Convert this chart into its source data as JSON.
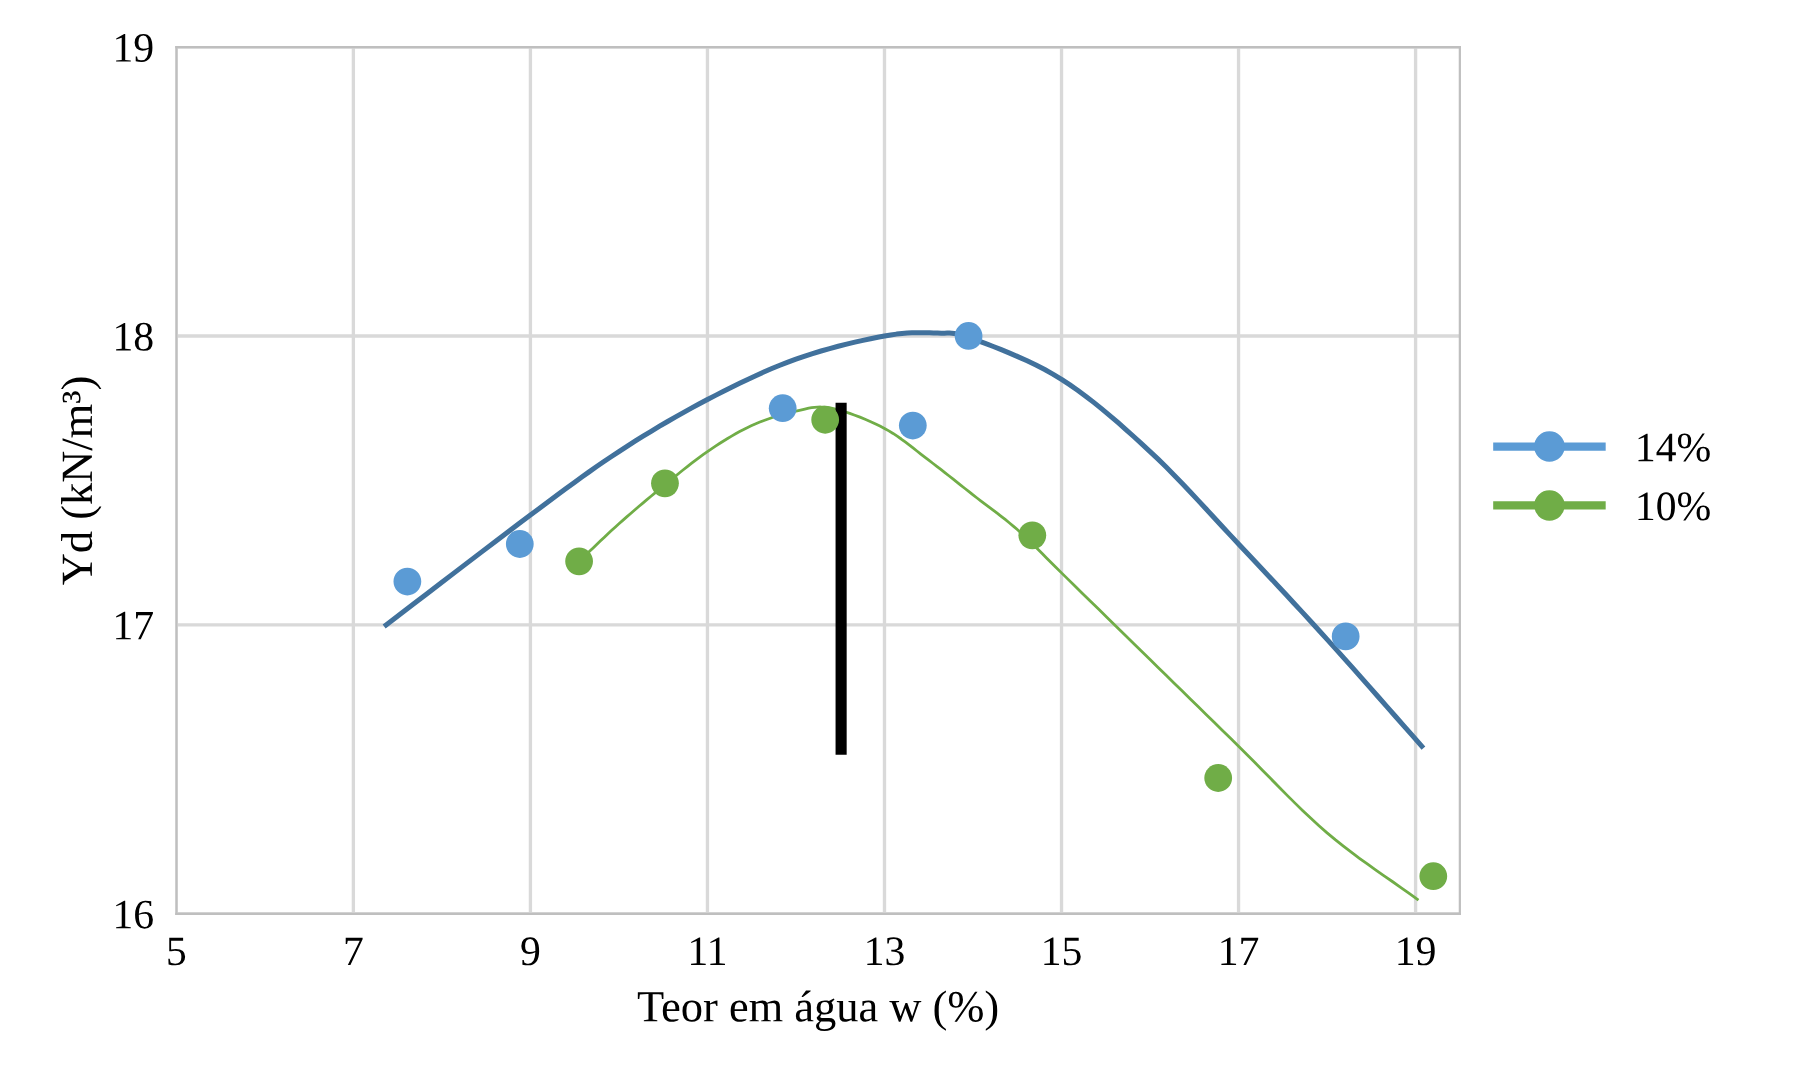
{
  "chart_data": {
    "type": "scatter",
    "xlabel": "Teor em água w (%)",
    "ylabel": "Yd (kN/m³)",
    "xlim": [
      5,
      19.5
    ],
    "xticks": [
      5,
      7,
      9,
      11,
      13,
      15,
      17,
      19
    ],
    "ylim": [
      16,
      19
    ],
    "yticks": [
      16,
      17,
      18,
      19
    ],
    "grid": true,
    "legend": "right",
    "series": [
      {
        "name": "14%",
        "marker": "circle",
        "color": "#5b9bd5",
        "x": [
          7.61,
          8.88,
          11.85,
          13.32,
          13.95,
          18.21
        ],
        "values": [
          17.15,
          17.28,
          17.75,
          17.69,
          18.0,
          16.96
        ]
      },
      {
        "name": "10%",
        "marker": "circle",
        "color": "#70ad47",
        "x": [
          9.55,
          10.52,
          12.33,
          14.67,
          16.77,
          19.2
        ],
        "values": [
          17.22,
          17.49,
          17.71,
          17.31,
          16.47,
          16.13
        ]
      },
      {
        "type": "line",
        "marker": "none",
        "color": "#41719c",
        "x": [
          7.37,
          9,
          10,
          11,
          12,
          13,
          13.6,
          14,
          15,
          16,
          17,
          18,
          19.07
        ],
        "values": [
          17.0,
          17.38,
          17.6,
          17.78,
          17.92,
          18.0,
          18.01,
          17.99,
          17.85,
          17.6,
          17.28,
          16.95,
          16.58
        ]
      },
      {
        "type": "line",
        "marker": "none",
        "color": "#70ad47",
        "x": [
          9.55,
          10,
          10.5,
          11,
          11.5,
          12,
          12.4,
          13,
          13.5,
          14,
          14.5,
          15,
          16,
          17,
          18,
          19.02
        ],
        "values": [
          17.22,
          17.35,
          17.48,
          17.6,
          17.69,
          17.74,
          17.75,
          17.68,
          17.57,
          17.45,
          17.33,
          17.18,
          16.88,
          16.58,
          16.28,
          16.05
        ]
      },
      {
        "type": "line",
        "marker": "none",
        "color": "#000000",
        "x": [
          12.51,
          12.51
        ],
        "values": [
          17.75,
          16.57
        ]
      }
    ]
  }
}
